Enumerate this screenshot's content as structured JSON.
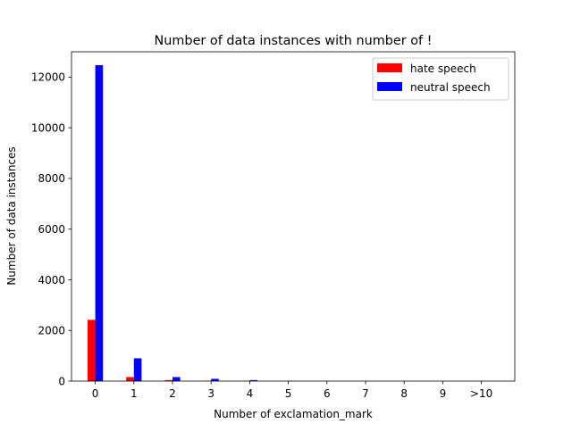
{
  "chart_data": {
    "type": "bar",
    "title": "Number of data instances with number of !",
    "xlabel": "Number of exclamation_mark",
    "ylabel": "Number of data instances",
    "categories": [
      "0",
      "1",
      "2",
      "3",
      "4",
      "5",
      "6",
      "7",
      "8",
      "9",
      ">10"
    ],
    "series": [
      {
        "name": "hate speech",
        "color": "#ff0000",
        "values": [
          2420,
          160,
          40,
          15,
          5,
          0,
          0,
          0,
          0,
          0,
          0
        ]
      },
      {
        "name": "neutral speech",
        "color": "#0000ff",
        "values": [
          12470,
          900,
          160,
          90,
          40,
          10,
          5,
          3,
          2,
          1,
          2
        ]
      }
    ],
    "ylim": [
      0,
      13000
    ],
    "yticks": [
      0,
      2000,
      4000,
      6000,
      8000,
      10000,
      12000
    ],
    "legend": "top-right",
    "grid": false
  }
}
